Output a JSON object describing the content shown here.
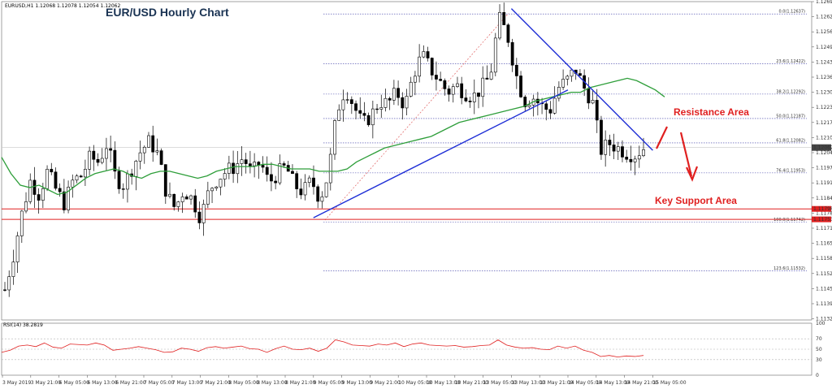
{
  "chart_data": {
    "type": "candlestick",
    "title": "EUR/USD Hourly Chart",
    "symbol_header": "EURUSD,H1  1.12068 1.12078 1.12054 1.12062",
    "price_range": [
      1.1132,
      1.1269
    ],
    "y_ticks": [
      1.1269,
      1.12625,
      1.1256,
      1.12495,
      1.1243,
      1.12365,
      1.123,
      1.12235,
      1.1217,
      1.12105,
      1.1204,
      1.11975,
      1.1191,
      1.11845,
      1.1178,
      1.11715,
      1.1165,
      1.11585,
      1.1152,
      1.11455,
      1.1139,
      1.11325
    ],
    "current_price": 1.12062,
    "x_labels": [
      "3 May 2019",
      "3 May 21:00",
      "6 May 05:00",
      "6 May 13:00",
      "6 May 21:00",
      "7 May 05:00",
      "7 May 13:00",
      "7 May 21:00",
      "8 May 05:00",
      "8 May 13:00",
      "8 May 21:00",
      "9 May 05:00",
      "9 May 13:00",
      "9 May 21:00",
      "10 May 05:00",
      "10 May 13:00",
      "10 May 21:00",
      "13 May 05:00",
      "13 May 13:00",
      "13 May 21:00",
      "14 May 05:00",
      "14 May 13:00",
      "14 May 21:00",
      "15 May 05:00"
    ],
    "close_path": [
      1.1145,
      1.116,
      1.1178,
      1.1192,
      1.1186,
      1.1196,
      1.1188,
      1.1182,
      1.1192,
      1.1194,
      1.1202,
      1.12,
      1.1208,
      1.1193,
      1.119,
      1.1198,
      1.1205,
      1.1209,
      1.1203,
      1.1186,
      1.118,
      1.1188,
      1.1184,
      1.1176,
      1.1188,
      1.1193,
      1.1196,
      1.1198,
      1.1202,
      1.1195,
      1.12,
      1.1191,
      1.1195,
      1.1198,
      1.119,
      1.1187,
      1.1192,
      1.1184,
      1.1195,
      1.1222,
      1.1232,
      1.1224,
      1.1216,
      1.122,
      1.1226,
      1.1225,
      1.123,
      1.1224,
      1.1238,
      1.1246,
      1.124,
      1.1235,
      1.123,
      1.1233,
      1.123,
      1.1228,
      1.1232,
      1.1237,
      1.1262,
      1.1255,
      1.1238,
      1.1226,
      1.1228,
      1.1224,
      1.1222,
      1.1232,
      1.1235,
      1.124,
      1.1232,
      1.1226,
      1.1205,
      1.1208,
      1.1206,
      1.1204,
      1.1203,
      1.1206
    ],
    "ma_path": [
      1.1202,
      1.1195,
      1.119,
      1.1189,
      1.119,
      1.1188,
      1.1186,
      1.1187,
      1.119,
      1.1193,
      1.1195,
      1.1196,
      1.1197,
      1.1196,
      1.1194,
      1.1193,
      1.1195,
      1.1196,
      1.1196,
      1.1195,
      1.1194,
      1.1193,
      1.1194,
      1.1196,
      1.1197,
      1.1198,
      1.1198,
      1.1198,
      1.1199,
      1.1199,
      1.1198,
      1.1197,
      1.1197,
      1.1197,
      1.1196,
      1.1196,
      1.1196,
      1.1197,
      1.12,
      1.1202,
      1.1204,
      1.1206,
      1.1207,
      1.1208,
      1.1209,
      1.121,
      1.1211,
      1.1213,
      1.1215,
      1.1217,
      1.1218,
      1.1219,
      1.122,
      1.1221,
      1.1222,
      1.1223,
      1.1224,
      1.1226,
      1.1227,
      1.1228,
      1.1229,
      1.123,
      1.123,
      1.1232,
      1.1233,
      1.1234,
      1.1235,
      1.1236,
      1.1235,
      1.1233,
      1.1231,
      1.1228
    ],
    "fib_levels": [
      {
        "label": "0.0(1.12637)",
        "price": 1.12637
      },
      {
        "label": "23.6(1.12422)",
        "price": 1.12422
      },
      {
        "label": "38.2(1.12292)",
        "price": 1.12292
      },
      {
        "label": "50.0(1.12187)",
        "price": 1.12187
      },
      {
        "label": "61.8(1.12082)",
        "price": 1.12082
      },
      {
        "label": "76.4(1.11953)",
        "price": 1.11953
      },
      {
        "label": "100.0(1.11742)",
        "price": 1.11742
      },
      {
        "label": "123.6(1.11532)",
        "price": 1.11532
      }
    ],
    "support_lines": [
      {
        "label": "1.11798",
        "price": 1.11798
      },
      {
        "label": "1.11753",
        "price": 1.11753
      }
    ],
    "trendlines": [
      {
        "name": "rising",
        "from": [
          "9 May 05:00",
          1.1176
        ],
        "to": [
          "14 May 05:00",
          1.1231
        ]
      },
      {
        "name": "falling",
        "from": [
          "13 May 13:00",
          1.1266
        ],
        "to": [
          "15 May 05:00",
          1.1205
        ]
      }
    ],
    "annotations": {
      "resistance": "Resistance Area",
      "support": "Key Support Area"
    },
    "rsi": {
      "header": "RSI(14) 38.2819",
      "value": 38.2819,
      "levels": [
        100,
        70,
        50,
        30,
        0
      ],
      "tick_labels": [
        "100",
        "70",
        "50",
        "30",
        "0"
      ],
      "path": [
        44,
        48,
        56,
        58,
        55,
        62,
        54,
        52,
        60,
        59,
        58,
        62,
        58,
        48,
        50,
        52,
        55,
        52,
        49,
        44,
        45,
        52,
        50,
        46,
        53,
        55,
        52,
        54,
        56,
        51,
        50,
        44,
        51,
        56,
        50,
        49,
        52,
        46,
        52,
        68,
        64,
        58,
        57,
        56,
        60,
        58,
        62,
        55,
        60,
        62,
        58,
        57,
        56,
        57,
        54,
        55,
        57,
        58,
        68,
        58,
        54,
        52,
        53,
        50,
        49,
        56,
        52,
        56,
        48,
        44,
        36,
        38,
        35,
        37,
        36,
        38
      ]
    },
    "colors": {
      "bull_candle": "#ffffff",
      "bear_candle": "#000000",
      "ma": "#2e9e3a",
      "trend": "#1f2fd6",
      "fib": "#3f3fa8",
      "support": "#e02020",
      "rsi": "#e02020",
      "annotation": "#e02020"
    }
  }
}
